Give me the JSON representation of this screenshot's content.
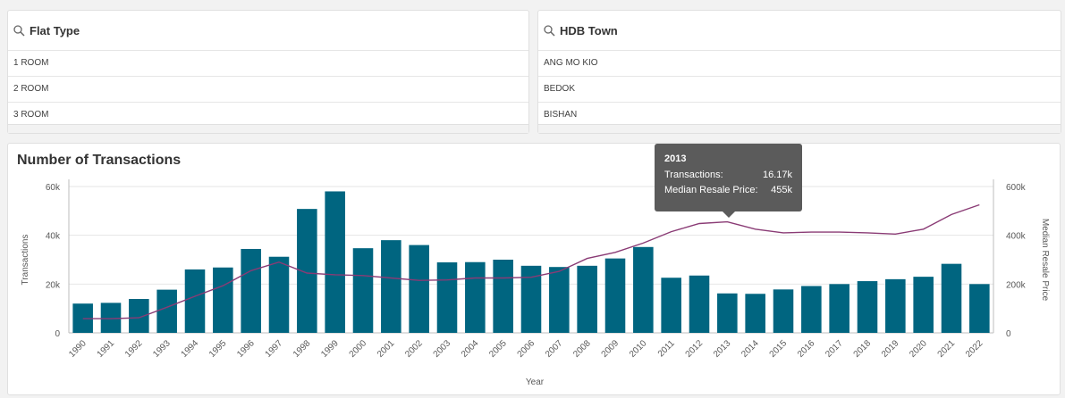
{
  "filters": [
    {
      "title": "Flat Type",
      "items": [
        "1 ROOM",
        "2 ROOM",
        "3 ROOM"
      ]
    },
    {
      "title": "HDB Town",
      "items": [
        "ANG MO KIO",
        "BEDOK",
        "BISHAN"
      ]
    }
  ],
  "icons": {
    "search": "search-icon"
  },
  "colors": {
    "bar": "#006580",
    "line": "#8a3b75",
    "tooltip_bg": "#5b5b5b"
  },
  "tooltip": {
    "year": "2013",
    "transactions_label": "Transactions:",
    "transactions_value": "16.17k",
    "price_label": "Median Resale Price:",
    "price_value": "455k"
  },
  "chart_data": {
    "type": "bar",
    "title": "Number of Transactions",
    "xlabel": "Year",
    "ylabel": "Transactions",
    "y2label": "Median Resale Price",
    "categories": [
      "1990",
      "1991",
      "1992",
      "1993",
      "1994",
      "1995",
      "1996",
      "1997",
      "1998",
      "1999",
      "2000",
      "2001",
      "2002",
      "2003",
      "2004",
      "2005",
      "2006",
      "2007",
      "2008",
      "2009",
      "2010",
      "2011",
      "2012",
      "2013",
      "2014",
      "2015",
      "2016",
      "2017",
      "2018",
      "2019",
      "2020",
      "2021",
      "2022"
    ],
    "ylim": [
      0,
      60000
    ],
    "y2lim": [
      0,
      600000
    ],
    "yticks": [
      "0",
      "20k",
      "40k",
      "60k"
    ],
    "y2ticks": [
      "0",
      "200k",
      "400k",
      "600k"
    ],
    "series": [
      {
        "name": "Transactions",
        "type": "bar",
        "axis": "left",
        "values": [
          12000,
          12300,
          13900,
          17700,
          26000,
          26800,
          34400,
          31200,
          50800,
          58000,
          34700,
          38000,
          36000,
          28900,
          29000,
          30000,
          27500,
          27000,
          27500,
          30500,
          35200,
          22600,
          23500,
          16170,
          16000,
          17800,
          19200,
          20000,
          21200,
          22000,
          23000,
          28300,
          20000
        ]
      },
      {
        "name": "Median Resale Price",
        "type": "line",
        "axis": "right",
        "values": [
          58000,
          58000,
          62000,
          105000,
          150000,
          193000,
          255000,
          290000,
          245000,
          238000,
          235000,
          225000,
          215000,
          217000,
          225000,
          225000,
          228000,
          252000,
          305000,
          330000,
          368000,
          415000,
          448000,
          455000,
          425000,
          410000,
          413000,
          413000,
          410000,
          405000,
          425000,
          485000,
          525000
        ]
      }
    ]
  }
}
